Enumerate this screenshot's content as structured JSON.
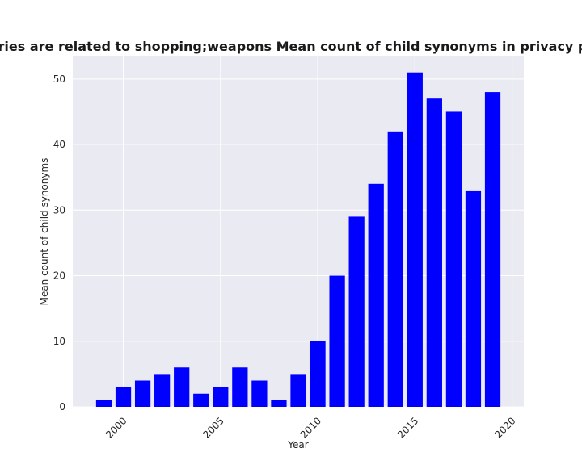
{
  "chart_data": {
    "type": "bar",
    "title": "categories are related to shopping;weapons Mean count of child synonyms in privacy policies",
    "xlabel": "Year",
    "ylabel": "Mean count of child synonyms",
    "x": [
      1999,
      2000,
      2001,
      2002,
      2003,
      2004,
      2005,
      2006,
      2007,
      2008,
      2009,
      2010,
      2011,
      2012,
      2013,
      2014,
      2015,
      2016,
      2017,
      2018,
      2019
    ],
    "values": [
      1,
      3,
      4,
      5,
      6,
      2,
      3,
      6,
      4,
      1,
      5,
      10,
      20,
      29,
      34,
      42,
      51,
      47,
      45,
      33,
      48
    ],
    "xlim": [
      1997.4,
      2020.6
    ],
    "ylim": [
      0,
      53.55
    ],
    "xticks": [
      2000,
      2005,
      2010,
      2015,
      2020
    ],
    "yticks": [
      0,
      10,
      20,
      30,
      40,
      50
    ],
    "bar_color": "#0000ff",
    "plot_background": "#eaeaf2",
    "grid": true,
    "grid_color": "#ffffff"
  }
}
